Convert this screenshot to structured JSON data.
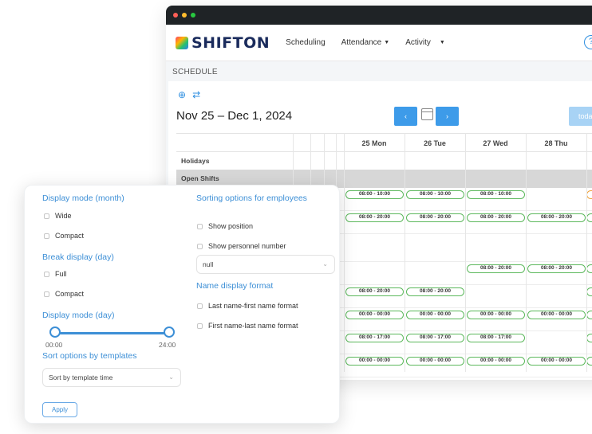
{
  "app": {
    "logo_text": "SHIFTON",
    "nav": [
      {
        "label": "Scheduling",
        "has_caret": false
      },
      {
        "label": "Attendance",
        "has_caret": true
      },
      {
        "label": "Activity",
        "has_caret": true
      }
    ],
    "help_glyph": "?"
  },
  "page": {
    "section_label": "SCHEDULE",
    "date_range": "Nov 25 – Dec 1, 2024",
    "prev_glyph": "‹",
    "next_glyph": "›",
    "today_label": "toda"
  },
  "calendar": {
    "days": [
      "25 Mon",
      "26 Tue",
      "27 Wed",
      "28 Thu"
    ],
    "rows": {
      "holidays": "Holidays",
      "open_shifts": "Open Shifts"
    },
    "shift_rows": [
      [
        "08:00 - 10:00",
        "08:00 - 10:00",
        "08:00 - 10:00",
        "",
        "orange"
      ],
      [
        "08:00 - 20:00",
        "08:00 - 20:00",
        "08:00 - 20:00",
        "08:00 - 20:00",
        "green"
      ],
      [
        "",
        "",
        "",
        "",
        ""
      ],
      [
        "",
        "",
        "08:00 - 20:00",
        "08:00 - 20:00",
        "green"
      ],
      [
        "08:00 - 20:00",
        "08:00 - 20:00",
        "",
        "",
        "green"
      ],
      [
        "00:00 - 00:00",
        "00:00 - 00:00",
        "00:00 - 00:00",
        "00:00 - 00:00",
        "green"
      ],
      [
        "08:00 - 17:00",
        "08:00 - 17:00",
        "08:00 - 17:00",
        "",
        "green"
      ],
      [
        "00:00 - 00:00",
        "00:00 - 00:00",
        "00:00 - 00:00",
        "00:00 - 00:00",
        "green"
      ]
    ]
  },
  "settings": {
    "display_mode_month": {
      "title": "Display mode (month)",
      "options": [
        "Wide",
        "Compact"
      ]
    },
    "break_display_day": {
      "title": "Break display (day)",
      "options": [
        "Full",
        "Compact"
      ]
    },
    "display_mode_day": {
      "title": "Display mode (day)",
      "range_start": "00:00",
      "range_end": "24:00",
      "range_start_fraction": 0,
      "range_end_fraction": 1
    },
    "sort_templates": {
      "title": "Sort options by templates",
      "selected": "Sort by template time"
    },
    "sorting_employees": {
      "title": "Sorting options for employees",
      "options": [
        "Show position",
        "Show personnel number"
      ],
      "selected": "null"
    },
    "name_format": {
      "title": "Name display format",
      "options": [
        "Last name-first name format",
        "First name-last name format"
      ]
    },
    "apply_label": "Apply"
  }
}
